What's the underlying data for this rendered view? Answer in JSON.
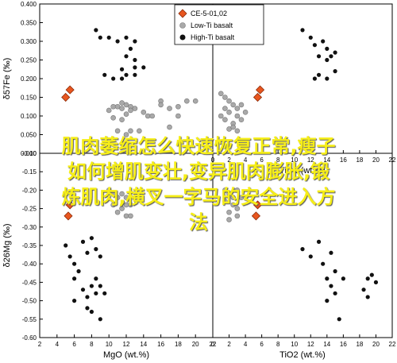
{
  "chart_data": [
    {
      "type": "scatter",
      "panel": "top-left",
      "ylabel": "δ57Fe (‰)",
      "yticks": [
        "0.400",
        "0.350",
        "0.300",
        "0.250",
        "0.200",
        "0.150",
        "0.100",
        "0.050",
        "0.000"
      ],
      "xticks": [],
      "xlim": [
        2,
        22
      ],
      "ylim": [
        0,
        0.4
      ],
      "series": [
        {
          "name": "CE-5-01,02",
          "points": [
            [
              5.0,
              0.15
            ],
            [
              5.5,
              0.17
            ]
          ]
        },
        {
          "name": "Low-Ti basalt",
          "points": [
            [
              10,
              0.115
            ],
            [
              10.5,
              0.125
            ],
            [
              11,
              0.125
            ],
            [
              11.5,
              0.135
            ],
            [
              12,
              0.13
            ],
            [
              11.5,
              0.12
            ],
            [
              12.5,
              0.125
            ],
            [
              12,
              0.105
            ],
            [
              12.5,
              0.115
            ],
            [
              13,
              0.12
            ],
            [
              14,
              0.11
            ],
            [
              14.5,
              0.1
            ],
            [
              15,
              0.1
            ],
            [
              16,
              0.14
            ],
            [
              16,
              0.13
            ],
            [
              17,
              0.12
            ],
            [
              18,
              0.125
            ],
            [
              18,
              0.1
            ],
            [
              19,
              0.14
            ],
            [
              20,
              0.14
            ],
            [
              17,
              0.07
            ],
            [
              10.5,
              0.095
            ],
            [
              11.5,
              0.09
            ],
            [
              12,
              0.05
            ],
            [
              12.5,
              0.06
            ],
            [
              13.5,
              0.06
            ],
            [
              11,
              0.06
            ]
          ]
        },
        {
          "name": "High-Ti basalt",
          "points": [
            [
              8.5,
              0.33
            ],
            [
              9,
              0.31
            ],
            [
              10,
              0.31
            ],
            [
              11,
              0.3
            ],
            [
              12,
              0.31
            ],
            [
              13,
              0.3
            ],
            [
              12.5,
              0.28
            ],
            [
              12,
              0.26
            ],
            [
              13,
              0.25
            ],
            [
              11.5,
              0.225
            ],
            [
              13,
              0.23
            ],
            [
              14,
              0.23
            ],
            [
              13,
              0.21
            ],
            [
              12,
              0.21
            ],
            [
              9.5,
              0.21
            ],
            [
              10.5,
              0.2
            ],
            [
              11.5,
              0.2
            ]
          ]
        }
      ]
    },
    {
      "type": "scatter",
      "panel": "top-right",
      "xlabel": "TiO2 (wt.%)",
      "xticks": [
        "0",
        "2",
        "4",
        "6",
        "8",
        "10",
        "12",
        "14",
        "16",
        "18",
        "20",
        "22"
      ],
      "xlim": [
        0,
        22
      ],
      "ylim": [
        0,
        0.4
      ],
      "series": [
        {
          "name": "CE-5-01,02",
          "points": [
            [
              5.5,
              0.15
            ],
            [
              5.8,
              0.17
            ]
          ]
        },
        {
          "name": "Low-Ti basalt",
          "points": [
            [
              1,
              0.16
            ],
            [
              1.5,
              0.15
            ],
            [
              2,
              0.14
            ],
            [
              2.5,
              0.13
            ],
            [
              1.5,
              0.12
            ],
            [
              2,
              0.11
            ],
            [
              3,
              0.12
            ],
            [
              3.5,
              0.13
            ],
            [
              1,
              0.1
            ],
            [
              1.5,
              0.09
            ],
            [
              2.5,
              0.08
            ],
            [
              3,
              0.1
            ],
            [
              3.5,
              0.09
            ],
            [
              2,
              0.065
            ],
            [
              2.5,
              0.07
            ],
            [
              3,
              0.06
            ],
            [
              4,
              0.11
            ]
          ]
        },
        {
          "name": "High-Ti basalt",
          "points": [
            [
              11,
              0.33
            ],
            [
              12,
              0.31
            ],
            [
              12.5,
              0.29
            ],
            [
              13,
              0.26
            ],
            [
              13.5,
              0.3
            ],
            [
              14,
              0.28
            ],
            [
              14,
              0.25
            ],
            [
              14.5,
              0.26
            ],
            [
              15,
              0.27
            ],
            [
              15,
              0.22
            ],
            [
              13,
              0.21
            ],
            [
              14,
              0.2
            ],
            [
              12.5,
              0.2
            ]
          ]
        }
      ]
    },
    {
      "type": "scatter",
      "panel": "bottom-left",
      "xlabel": "MgO (wt.%)",
      "ylabel": "δ26Mg (‰)",
      "xticks": [
        "2",
        "4",
        "6",
        "8",
        "10",
        "12",
        "14",
        "16",
        "18",
        "20",
        "22"
      ],
      "yticks": [
        "-0.10",
        "-0.15",
        "-0.20",
        "-0.25",
        "-0.30",
        "-0.35",
        "-0.40",
        "-0.45",
        "-0.50",
        "-0.55",
        "-0.60"
      ],
      "xlim": [
        2,
        22
      ],
      "ylim": [
        -0.6,
        -0.1
      ],
      "series": [
        {
          "name": "CE-5-01,02",
          "points": [
            [
              5.5,
              -0.24
            ],
            [
              5.3,
              -0.27
            ]
          ]
        },
        {
          "name": "Low-Ti basalt",
          "points": [
            [
              10,
              -0.2
            ],
            [
              10.5,
              -0.21
            ],
            [
              11,
              -0.22
            ],
            [
              11.5,
              -0.21
            ],
            [
              12,
              -0.22
            ],
            [
              12,
              -0.24
            ],
            [
              11.5,
              -0.25
            ],
            [
              12.5,
              -0.24
            ],
            [
              11,
              -0.26
            ],
            [
              12,
              -0.27
            ],
            [
              10.5,
              -0.24
            ],
            [
              12.5,
              -0.27
            ]
          ]
        },
        {
          "name": "High-Ti basalt",
          "points": [
            [
              5,
              -0.35
            ],
            [
              5.5,
              -0.38
            ],
            [
              6,
              -0.4
            ],
            [
              7,
              -0.34
            ],
            [
              7.5,
              -0.37
            ],
            [
              8,
              -0.33
            ],
            [
              8.5,
              -0.36
            ],
            [
              9,
              -0.38
            ],
            [
              6,
              -0.44
            ],
            [
              6.5,
              -0.42
            ],
            [
              7,
              -0.47
            ],
            [
              7.5,
              -0.49
            ],
            [
              8,
              -0.46
            ],
            [
              8.5,
              -0.44
            ],
            [
              9,
              -0.46
            ],
            [
              8.5,
              -0.48
            ],
            [
              9.5,
              -0.48
            ],
            [
              6,
              -0.5
            ],
            [
              7.5,
              -0.52
            ],
            [
              8,
              -0.53
            ],
            [
              9,
              -0.55
            ]
          ]
        }
      ]
    },
    {
      "type": "scatter",
      "panel": "bottom-right",
      "xlabel": "TiO2 (wt.%)",
      "xticks": [
        "0",
        "2",
        "4",
        "6",
        "8",
        "10",
        "12",
        "14",
        "16",
        "18",
        "20",
        "22"
      ],
      "xlim": [
        0,
        22
      ],
      "ylim": [
        -0.6,
        -0.1
      ],
      "series": [
        {
          "name": "CE-5-01,02",
          "points": [
            [
              5.5,
              -0.24
            ],
            [
              5.3,
              -0.27
            ]
          ]
        },
        {
          "name": "Low-Ti basalt",
          "points": [
            [
              1.5,
              -0.2
            ],
            [
              2,
              -0.21
            ],
            [
              2.5,
              -0.22
            ],
            [
              3,
              -0.2
            ],
            [
              1.5,
              -0.23
            ],
            [
              2.5,
              -0.24
            ],
            [
              3,
              -0.25
            ],
            [
              2,
              -0.26
            ],
            [
              3.5,
              -0.22
            ],
            [
              3,
              -0.27
            ],
            [
              2,
              -0.28
            ]
          ]
        },
        {
          "name": "High-Ti basalt",
          "points": [
            [
              11,
              -0.36
            ],
            [
              12,
              -0.38
            ],
            [
              13,
              -0.34
            ],
            [
              13.5,
              -0.4
            ],
            [
              14,
              -0.44
            ],
            [
              14.5,
              -0.37
            ],
            [
              15,
              -0.42
            ],
            [
              16,
              -0.44
            ],
            [
              15,
              -0.48
            ],
            [
              14,
              -0.5
            ],
            [
              15.5,
              -0.55
            ],
            [
              19,
              -0.44
            ],
            [
              19.5,
              -0.43
            ],
            [
              20,
              -0.45
            ],
            [
              18.5,
              -0.47
            ],
            [
              19,
              -0.49
            ],
            [
              14.5,
              -0.46
            ]
          ]
        }
      ]
    }
  ],
  "legend": {
    "entries": [
      "CE-5-01,02",
      "Low-Ti basalt",
      "High-Ti basalt"
    ],
    "colors": {
      "CE-5-01,02": "#e8561f",
      "Low-Ti basalt": "#a9a9a9",
      "High-Ti basalt": "#111111"
    }
  },
  "overlay_text": {
    "line1": "肌肉萎缩怎么快速恢复正常,瘦子",
    "line2": "如何增肌变壮,变异肌肉膨胀,锻",
    "line3": "炼肌肉,横叉一字马的安全进入方",
    "line4": "法"
  }
}
